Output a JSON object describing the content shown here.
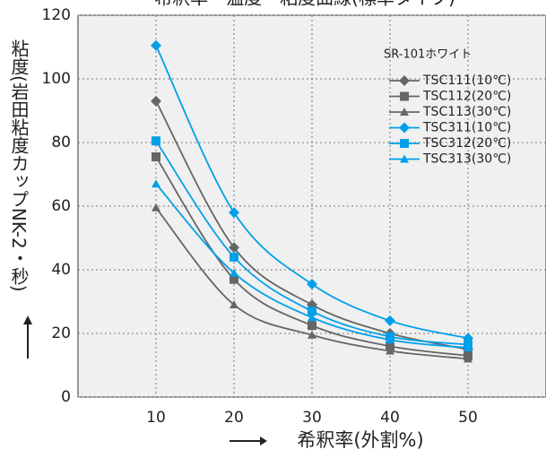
{
  "chart_data": {
    "type": "line",
    "title": "希釈率・温度・粘度曲線(標準タイプ)",
    "x_label": "希釈率(外割%)",
    "y_label": "粘度(岩田粘度カップNK-2・秒)",
    "legend_title": "SR-101ホワイト",
    "x": [
      10,
      20,
      30,
      40,
      50
    ],
    "series": [
      {
        "name": "TSC111(10℃)",
        "color": "#666666",
        "marker": "diamond",
        "values": [
          93,
          47,
          29,
          20,
          15
        ]
      },
      {
        "name": "TSC112(20℃)",
        "color": "#666666",
        "marker": "square",
        "values": [
          75.5,
          37,
          22.5,
          16,
          13
        ]
      },
      {
        "name": "TSC113(30℃)",
        "color": "#666666",
        "marker": "triangle",
        "values": [
          59.5,
          29,
          19.5,
          14.5,
          12
        ]
      },
      {
        "name": "TSC311(10℃)",
        "color": "#00a0e9",
        "marker": "diamond",
        "values": [
          110.5,
          58,
          35.5,
          24,
          18.5
        ]
      },
      {
        "name": "TSC312(20℃)",
        "color": "#00a0e9",
        "marker": "square",
        "values": [
          80.5,
          44,
          27,
          19,
          16.5
        ]
      },
      {
        "name": "TSC313(30℃)",
        "color": "#00a0e9",
        "marker": "triangle",
        "values": [
          67,
          39,
          25,
          18,
          15.5
        ]
      }
    ],
    "xlim": [
      0,
      60
    ],
    "ylim": [
      0,
      120
    ],
    "xticks": [
      10,
      20,
      30,
      40,
      50
    ],
    "yticks": [
      0,
      20,
      40,
      60,
      80,
      100,
      120
    ],
    "grid": true
  }
}
